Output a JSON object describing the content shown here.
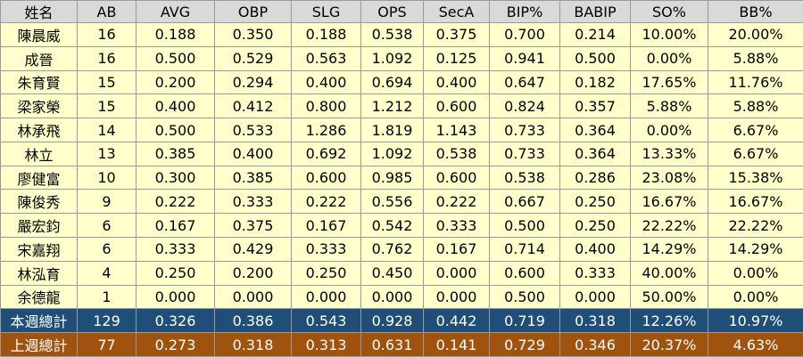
{
  "table": {
    "header": [
      "姓名",
      "AB",
      "AVG",
      "OBP",
      "SLG",
      "OPS",
      "SecA",
      "BIP%",
      "BABIP",
      "SO%",
      "BB%"
    ],
    "rows": [
      [
        "陳晨威",
        "16",
        "0.188",
        "0.350",
        "0.188",
        "0.538",
        "0.375",
        "0.700",
        "0.214",
        "10.00%",
        "20.00%"
      ],
      [
        "成晉",
        "16",
        "0.500",
        "0.529",
        "0.563",
        "1.092",
        "0.125",
        "0.941",
        "0.500",
        "0.00%",
        "5.88%"
      ],
      [
        "朱育賢",
        "15",
        "0.200",
        "0.294",
        "0.400",
        "0.694",
        "0.400",
        "0.647",
        "0.182",
        "17.65%",
        "11.76%"
      ],
      [
        "梁家榮",
        "15",
        "0.400",
        "0.412",
        "0.800",
        "1.212",
        "0.600",
        "0.824",
        "0.357",
        "5.88%",
        "5.88%"
      ],
      [
        "林承飛",
        "14",
        "0.500",
        "0.533",
        "1.286",
        "1.819",
        "1.143",
        "0.733",
        "0.364",
        "0.00%",
        "6.67%"
      ],
      [
        "林立",
        "13",
        "0.385",
        "0.400",
        "0.692",
        "1.092",
        "0.538",
        "0.733",
        "0.364",
        "13.33%",
        "6.67%"
      ],
      [
        "廖健富",
        "10",
        "0.300",
        "0.385",
        "0.600",
        "0.985",
        "0.600",
        "0.538",
        "0.286",
        "23.08%",
        "15.38%"
      ],
      [
        "陳俊秀",
        "9",
        "0.222",
        "0.333",
        "0.222",
        "0.556",
        "0.222",
        "0.667",
        "0.250",
        "16.67%",
        "16.67%"
      ],
      [
        "嚴宏鈞",
        "6",
        "0.167",
        "0.375",
        "0.167",
        "0.542",
        "0.333",
        "0.500",
        "0.250",
        "22.22%",
        "22.22%"
      ],
      [
        "宋嘉翔",
        "6",
        "0.333",
        "0.429",
        "0.333",
        "0.762",
        "0.167",
        "0.714",
        "0.400",
        "14.29%",
        "14.29%"
      ],
      [
        "林泓育",
        "4",
        "0.250",
        "0.200",
        "0.250",
        "0.450",
        "0.000",
        "0.600",
        "0.333",
        "40.00%",
        "0.00%"
      ],
      [
        "余德龍",
        "1",
        "0.000",
        "0.000",
        "0.000",
        "0.000",
        "0.000",
        "0.500",
        "0.000",
        "50.00%",
        "0.00%"
      ]
    ],
    "totals": [
      [
        "本週總計",
        "129",
        "0.326",
        "0.386",
        "0.543",
        "0.928",
        "0.442",
        "0.719",
        "0.318",
        "12.26%",
        "10.97%"
      ],
      [
        "上週總計",
        "77",
        "0.273",
        "0.318",
        "0.313",
        "0.631",
        "0.141",
        "0.729",
        "0.346",
        "20.37%",
        "4.63%"
      ]
    ]
  }
}
